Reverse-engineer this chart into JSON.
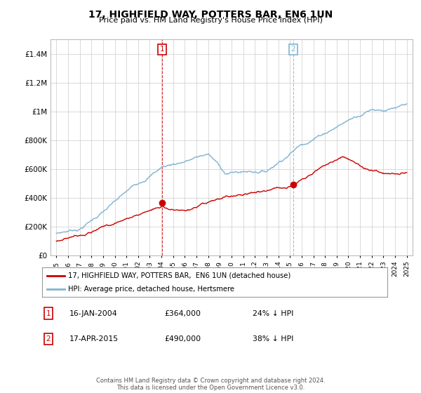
{
  "title": "17, HIGHFIELD WAY, POTTERS BAR, EN6 1UN",
  "subtitle": "Price paid vs. HM Land Registry's House Price Index (HPI)",
  "ylim": [
    0,
    1500000
  ],
  "yticks": [
    0,
    200000,
    400000,
    600000,
    800000,
    1000000,
    1200000,
    1400000
  ],
  "ytick_labels": [
    "£0",
    "£200K",
    "£400K",
    "£600K",
    "£800K",
    "£1M",
    "£1.2M",
    "£1.4M"
  ],
  "xlim_start": 1994.5,
  "xlim_end": 2025.5,
  "marker1_x": 2004.04,
  "marker1_y": 364000,
  "marker1_label": "1",
  "marker1_date": "16-JAN-2004",
  "marker1_price": "£364,000",
  "marker1_hpi": "24% ↓ HPI",
  "marker2_x": 2015.29,
  "marker2_y": 490000,
  "marker2_label": "2",
  "marker2_date": "17-APR-2015",
  "marker2_price": "£490,000",
  "marker2_hpi": "38% ↓ HPI",
  "red_line_color": "#cc0000",
  "blue_line_color": "#7fb3d3",
  "grid_color": "#cccccc",
  "background_color": "#ffffff",
  "legend_label_red": "17, HIGHFIELD WAY, POTTERS BAR,  EN6 1UN (detached house)",
  "legend_label_blue": "HPI: Average price, detached house, Hertsmere",
  "footer": "Contains HM Land Registry data © Crown copyright and database right 2024.\nThis data is licensed under the Open Government Licence v3.0."
}
